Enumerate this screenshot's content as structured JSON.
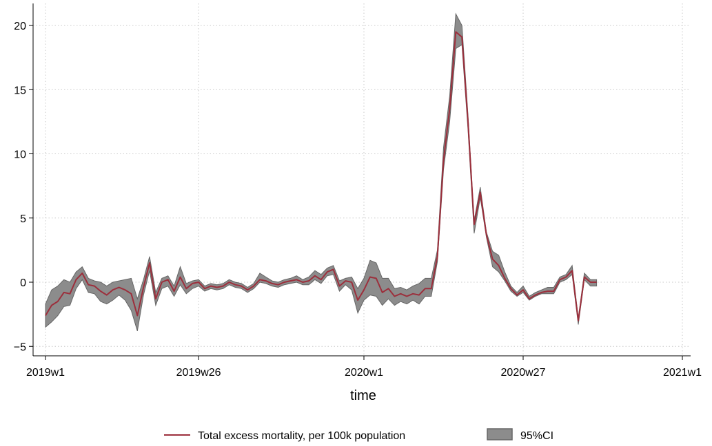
{
  "colors": {
    "line": "#9c2f3c",
    "ci_fill": "#8c8c8c",
    "ci_stroke": "#666666",
    "grid": "#c8c8c8"
  },
  "chart_data": {
    "type": "line",
    "xlabel": "time",
    "ylabel": "",
    "ylim": [
      -5.5,
      22
    ],
    "yticks": [
      -5,
      0,
      5,
      10,
      15,
      20
    ],
    "xlim": [
      0,
      104
    ],
    "x_ticks": [
      {
        "week_index": 0,
        "label": "2019w1"
      },
      {
        "week_index": 25,
        "label": "2019w26"
      },
      {
        "week_index": 52,
        "label": "2020w1"
      },
      {
        "week_index": 78,
        "label": "2020w27"
      },
      {
        "week_index": 104,
        "label": "2021w1"
      }
    ],
    "grid": true,
    "legend_position": "bottom",
    "series": [
      {
        "name": "Total excess mortality, per 100k population",
        "type": "line",
        "values": [
          -2.6,
          -1.8,
          -1.5,
          -0.8,
          -0.9,
          0.2,
          0.7,
          -0.2,
          -0.3,
          -0.7,
          -1.0,
          -0.6,
          -0.4,
          -0.6,
          -0.9,
          -2.6,
          -0.4,
          1.5,
          -1.3,
          0.0,
          0.2,
          -0.7,
          0.4,
          -0.5,
          -0.1,
          0.0,
          -0.5,
          -0.3,
          -0.4,
          -0.3,
          0.0,
          -0.2,
          -0.3,
          -0.6,
          -0.3,
          0.2,
          0.1,
          -0.1,
          -0.2,
          0.0,
          0.1,
          0.2,
          0.0,
          0.1,
          0.5,
          0.2,
          0.8,
          1.0,
          -0.3,
          0.1,
          0.0,
          -1.4,
          -0.6,
          0.4,
          0.3,
          -0.8,
          -0.5,
          -1.1,
          -0.9,
          -1.1,
          -0.9,
          -1.0,
          -0.5,
          -0.5,
          2.0,
          9.5,
          13.5,
          19.5,
          19.1,
          12.5,
          4.5,
          7.0,
          3.7,
          1.8,
          1.3,
          0.3,
          -0.5,
          -1.0,
          -0.6,
          -1.3,
          -1.0,
          -0.8,
          -0.7,
          -0.7,
          0.2,
          0.4,
          0.9,
          -3.0,
          0.4,
          0.0,
          0.0
        ],
        "ci_lower": [
          -3.5,
          -3.1,
          -2.6,
          -1.9,
          -1.8,
          -0.5,
          0.2,
          -0.8,
          -0.9,
          -1.5,
          -1.7,
          -1.4,
          -1.0,
          -1.4,
          -2.2,
          -3.8,
          -1.0,
          0.9,
          -1.8,
          -0.5,
          -0.3,
          -1.1,
          -0.2,
          -0.9,
          -0.5,
          -0.3,
          -0.7,
          -0.5,
          -0.6,
          -0.5,
          -0.2,
          -0.4,
          -0.5,
          -0.8,
          -0.5,
          0.0,
          -0.1,
          -0.3,
          -0.4,
          -0.2,
          -0.1,
          0.0,
          -0.2,
          -0.2,
          0.2,
          -0.1,
          0.5,
          0.6,
          -0.7,
          -0.2,
          -0.6,
          -2.4,
          -1.4,
          -1.0,
          -1.1,
          -1.8,
          -1.3,
          -1.8,
          -1.5,
          -1.7,
          -1.4,
          -1.7,
          -1.1,
          -1.1,
          1.6,
          8.8,
          12.5,
          18.2,
          18.5,
          11.9,
          3.8,
          6.6,
          3.5,
          1.2,
          0.8,
          0.1,
          -0.7,
          -1.1,
          -0.8,
          -1.4,
          -1.1,
          -0.9,
          -0.9,
          -0.9,
          0.0,
          0.2,
          0.6,
          -3.3,
          0.2,
          -0.3,
          -0.3
        ],
        "ci_upper": [
          -1.7,
          -0.6,
          -0.3,
          0.2,
          0.0,
          0.8,
          1.2,
          0.3,
          0.1,
          0.0,
          -0.3,
          0.0,
          0.1,
          0.2,
          0.3,
          -1.3,
          0.2,
          2.0,
          -0.8,
          0.3,
          0.5,
          -0.3,
          1.2,
          -0.1,
          0.1,
          0.2,
          -0.3,
          -0.1,
          -0.2,
          -0.1,
          0.2,
          0.0,
          -0.1,
          -0.4,
          -0.1,
          0.7,
          0.4,
          0.1,
          0.0,
          0.2,
          0.3,
          0.5,
          0.2,
          0.4,
          0.9,
          0.6,
          1.1,
          1.3,
          0.1,
          0.3,
          0.4,
          -0.5,
          0.3,
          1.7,
          1.5,
          0.3,
          0.3,
          -0.5,
          -0.4,
          -0.6,
          -0.3,
          -0.1,
          0.3,
          0.3,
          2.5,
          10.5,
          14.5,
          20.9,
          20.0,
          13.0,
          4.8,
          7.4,
          3.9,
          2.4,
          2.1,
          0.8,
          -0.3,
          -0.8,
          -0.3,
          -1.1,
          -0.8,
          -0.6,
          -0.4,
          -0.4,
          0.4,
          0.6,
          1.3,
          -2.8,
          0.7,
          0.2,
          0.2
        ]
      },
      {
        "name": "95%CI",
        "type": "area"
      }
    ]
  }
}
